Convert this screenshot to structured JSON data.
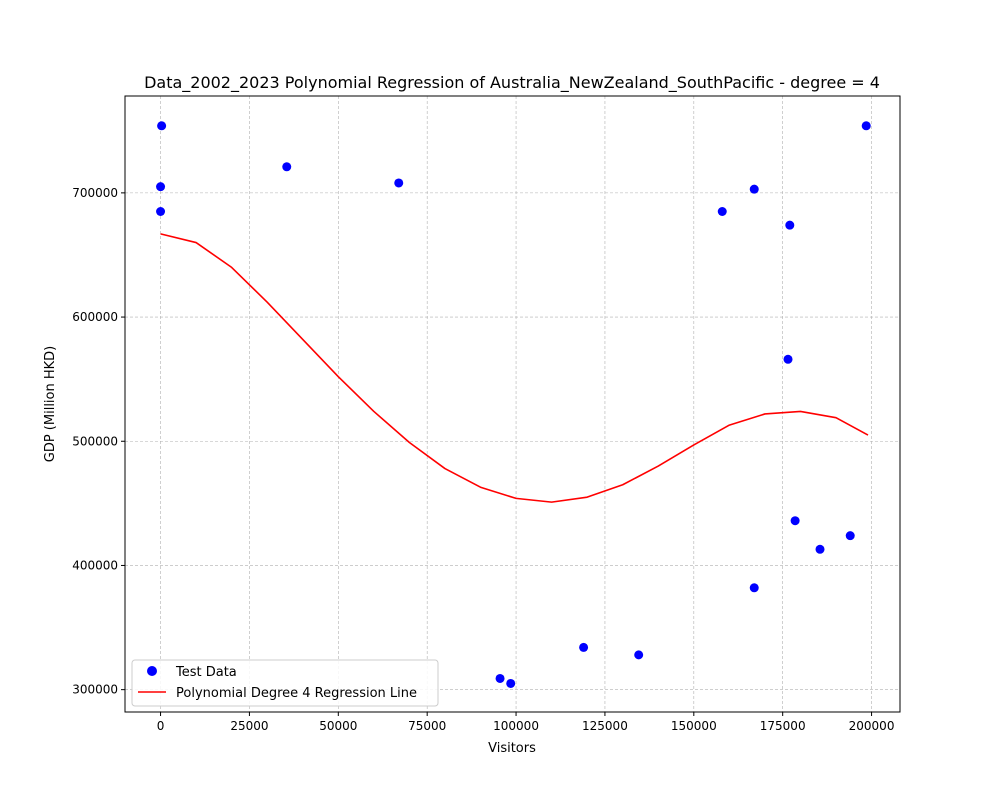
{
  "chart_data": {
    "type": "scatter",
    "title": "Data_2002_2023 Polynomial Regression of Australia_NewZealand_SouthPacific - degree = 4",
    "xlabel": "Visitors",
    "ylabel": "GDP (Million HKD)",
    "xlim": [
      -10000,
      208000
    ],
    "ylim": [
      282000,
      778000
    ],
    "x_ticks": [
      0,
      25000,
      50000,
      75000,
      100000,
      125000,
      150000,
      175000,
      200000
    ],
    "y_ticks": [
      300000,
      400000,
      500000,
      600000,
      700000
    ],
    "grid": true,
    "legend_position": "lower-left",
    "colors": {
      "points": "#0000ff",
      "line": "#ff0000"
    },
    "series": [
      {
        "name": "Test Data",
        "kind": "scatter",
        "points": [
          [
            300,
            754000
          ],
          [
            0,
            705000
          ],
          [
            0,
            685000
          ],
          [
            35500,
            721000
          ],
          [
            67000,
            708000
          ],
          [
            95500,
            309000
          ],
          [
            98500,
            305000
          ],
          [
            119000,
            334000
          ],
          [
            134500,
            328000
          ],
          [
            158000,
            685000
          ],
          [
            167000,
            703000
          ],
          [
            177000,
            674000
          ],
          [
            176500,
            566000
          ],
          [
            178500,
            436000
          ],
          [
            185500,
            413000
          ],
          [
            194000,
            424000
          ],
          [
            167000,
            382000
          ],
          [
            198500,
            754000
          ]
        ]
      },
      {
        "name": "Polynomial Degree 4 Regression Line",
        "kind": "line",
        "points": [
          [
            0,
            667000
          ],
          [
            10000,
            660000
          ],
          [
            20000,
            640000
          ],
          [
            30000,
            612000
          ],
          [
            40000,
            582000
          ],
          [
            50000,
            552000
          ],
          [
            60000,
            524000
          ],
          [
            70000,
            499000
          ],
          [
            80000,
            478000
          ],
          [
            90000,
            463000
          ],
          [
            100000,
            454000
          ],
          [
            110000,
            451000
          ],
          [
            120000,
            455000
          ],
          [
            130000,
            465000
          ],
          [
            140000,
            480000
          ],
          [
            150000,
            497000
          ],
          [
            160000,
            513000
          ],
          [
            170000,
            522000
          ],
          [
            180000,
            524000
          ],
          [
            190000,
            519000
          ],
          [
            199000,
            505000
          ]
        ]
      }
    ]
  }
}
